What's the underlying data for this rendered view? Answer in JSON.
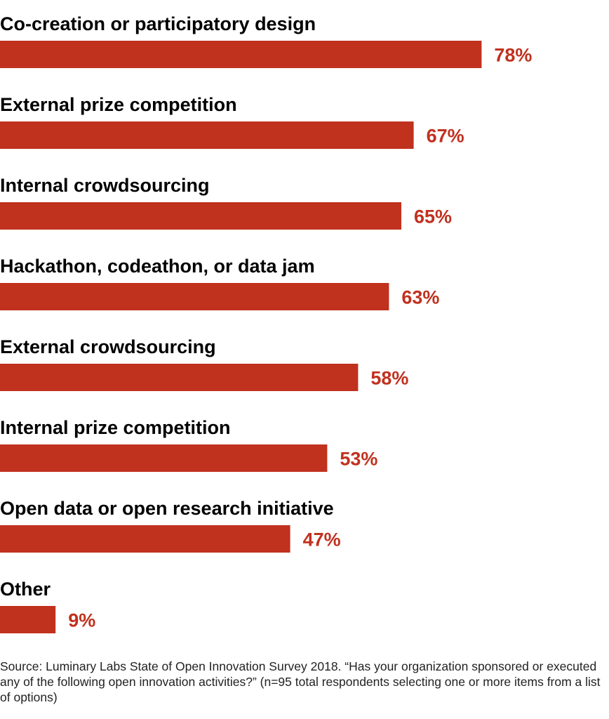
{
  "chart_data": {
    "type": "bar",
    "orientation": "horizontal",
    "categories": [
      "Co-creation or participatory design",
      "External prize competition",
      "Internal crowdsourcing",
      "Hackathon, codeathon, or data jam",
      "External crowdsourcing",
      "Internal prize competition",
      "Open data or open research initiative",
      "Other"
    ],
    "values": [
      78,
      67,
      65,
      63,
      58,
      53,
      47,
      9
    ],
    "value_labels": [
      "78%",
      "67%",
      "65%",
      "63%",
      "58%",
      "53%",
      "47%",
      "9%"
    ],
    "xlim": [
      0,
      100
    ],
    "grid": false,
    "legend": "none",
    "bar_color": "#C0311E",
    "value_label_color": "#C0311E"
  },
  "source_note": "Source: Luminary Labs State of Open Innovation Survey 2018. “Has your organization sponsored or executed any of the following open innovation activities?” (n=95 total respondents selecting one or more items from a list of options)"
}
